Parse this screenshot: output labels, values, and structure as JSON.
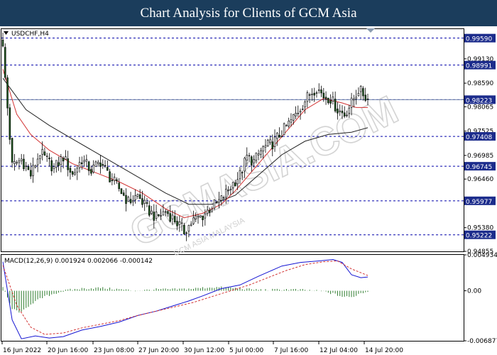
{
  "header": {
    "title": "Chart Analysis for Clients of GCM Asia"
  },
  "watermark": {
    "text": "GCMASIA.COM",
    "subtext": "GCM ASIA MALAYSIA",
    "color": "#d8d8d8"
  },
  "chart_data": [
    {
      "type": "candlestick",
      "symbol_label": "USDCHF,H4",
      "ylim": [
        0.94855,
        0.9979
      ],
      "y_ticks": [
        "0.99130",
        "0.98590",
        "0.98065",
        "0.97525",
        "0.96985",
        "0.96460",
        "0.95380",
        "0.94855"
      ],
      "x_labels": [
        "16 Jun 2022",
        "20 Jun 16:00",
        "23 Jun 08:00",
        "27 Jun 20:00",
        "30 Jun 12:00",
        "5 Jul 00:00",
        "7 Jul 16:00",
        "12 Jul 04:00",
        "14 Jul 20:00"
      ],
      "levels": [
        {
          "label": "0.99590",
          "value": 0.9959
        },
        {
          "label": "0.98991",
          "value": 0.98991
        },
        {
          "label": "0.98223",
          "value": 0.98223
        },
        {
          "label": "0.97408",
          "value": 0.97408
        },
        {
          "label": "0.96745",
          "value": 0.96745
        },
        {
          "label": "0.95977",
          "value": 0.95977
        },
        {
          "label": "0.95222",
          "value": 0.95222
        }
      ],
      "current_price": "0.98223",
      "price_path": [
        [
          0,
          0.9935
        ],
        [
          4,
          0.9675
        ],
        [
          8,
          0.969
        ],
        [
          12,
          0.9655
        ],
        [
          16,
          0.9705
        ],
        [
          22,
          0.967
        ],
        [
          26,
          0.9695
        ],
        [
          30,
          0.9655
        ],
        [
          34,
          0.969
        ],
        [
          38,
          0.9665
        ],
        [
          42,
          0.9685
        ],
        [
          46,
          0.965
        ],
        [
          50,
          0.9625
        ],
        [
          54,
          0.9595
        ],
        [
          58,
          0.961
        ],
        [
          62,
          0.958
        ],
        [
          66,
          0.956
        ],
        [
          70,
          0.9575
        ],
        [
          74,
          0.9555
        ],
        [
          78,
          0.953
        ],
        [
          82,
          0.9555
        ],
        [
          86,
          0.9565
        ],
        [
          90,
          0.9585
        ],
        [
          94,
          0.96
        ],
        [
          98,
          0.963
        ],
        [
          102,
          0.9655
        ],
        [
          105,
          0.9695
        ],
        [
          108,
          0.9685
        ],
        [
          112,
          0.9715
        ],
        [
          116,
          0.9725
        ],
        [
          120,
          0.975
        ],
        [
          124,
          0.9775
        ],
        [
          128,
          0.9805
        ],
        [
          132,
          0.9835
        ],
        [
          135,
          0.985
        ],
        [
          138,
          0.983
        ],
        [
          141,
          0.9825
        ],
        [
          144,
          0.98
        ],
        [
          147,
          0.979
        ],
        [
          150,
          0.9815
        ],
        [
          153,
          0.9845
        ],
        [
          155,
          0.9835
        ],
        [
          157,
          0.98223
        ]
      ],
      "ma_fast": [
        [
          0,
          0.989
        ],
        [
          6,
          0.979
        ],
        [
          12,
          0.9745
        ],
        [
          20,
          0.971
        ],
        [
          30,
          0.968
        ],
        [
          40,
          0.966
        ],
        [
          50,
          0.964
        ],
        [
          60,
          0.9615
        ],
        [
          70,
          0.958
        ],
        [
          78,
          0.956
        ],
        [
          86,
          0.957
        ],
        [
          94,
          0.959
        ],
        [
          100,
          0.962
        ],
        [
          110,
          0.968
        ],
        [
          120,
          0.974
        ],
        [
          130,
          0.98
        ],
        [
          138,
          0.9825
        ],
        [
          146,
          0.9815
        ],
        [
          152,
          0.9805
        ],
        [
          157,
          0.9805
        ]
      ],
      "ma_slow": [
        [
          0,
          0.987
        ],
        [
          10,
          0.98
        ],
        [
          20,
          0.9765
        ],
        [
          30,
          0.9735
        ],
        [
          40,
          0.9705
        ],
        [
          50,
          0.9675
        ],
        [
          60,
          0.9645
        ],
        [
          70,
          0.9615
        ],
        [
          80,
          0.959
        ],
        [
          90,
          0.959
        ],
        [
          100,
          0.961
        ],
        [
          110,
          0.9655
        ],
        [
          120,
          0.97
        ],
        [
          130,
          0.973
        ],
        [
          140,
          0.9745
        ],
        [
          150,
          0.975
        ],
        [
          157,
          0.976
        ]
      ],
      "n_bars": 158,
      "up_color": "#ffffff",
      "down_color": "#1e5a1e",
      "ma_fast_color": "#d23232",
      "ma_slow_color": "#222222",
      "level_color": "#0000aa"
    },
    {
      "type": "line",
      "indicator_label": "MACD(12,26,9) 0.001924 0.002066 -0.000142",
      "ylim": [
        -0.006877,
        0.004934
      ],
      "y_ticks": [
        "0.004934",
        "0.00",
        "-0.006877"
      ],
      "macd_line": [
        [
          0,
          0.004
        ],
        [
          4,
          -0.004
        ],
        [
          8,
          -0.0066
        ],
        [
          14,
          -0.0062
        ],
        [
          20,
          -0.0065
        ],
        [
          26,
          -0.0063
        ],
        [
          34,
          -0.0054
        ],
        [
          42,
          -0.0049
        ],
        [
          50,
          -0.0043
        ],
        [
          58,
          -0.0034
        ],
        [
          66,
          -0.0028
        ],
        [
          74,
          -0.002
        ],
        [
          80,
          -0.0014
        ],
        [
          86,
          -0.0007
        ],
        [
          94,
          0.0003
        ],
        [
          102,
          0.0008
        ],
        [
          110,
          0.002
        ],
        [
          120,
          0.0034
        ],
        [
          128,
          0.0039
        ],
        [
          136,
          0.0041
        ],
        [
          142,
          0.0043
        ],
        [
          146,
          0.0039
        ],
        [
          150,
          0.0022
        ],
        [
          154,
          0.0018
        ],
        [
          157,
          0.0019
        ]
      ],
      "signal_line": [
        [
          0,
          0.0035
        ],
        [
          6,
          -0.002
        ],
        [
          12,
          -0.005
        ],
        [
          18,
          -0.006
        ],
        [
          26,
          -0.0058
        ],
        [
          34,
          -0.0051
        ],
        [
          42,
          -0.0046
        ],
        [
          50,
          -0.0041
        ],
        [
          58,
          -0.0034
        ],
        [
          66,
          -0.0028
        ],
        [
          74,
          -0.0022
        ],
        [
          82,
          -0.0016
        ],
        [
          90,
          -0.0008
        ],
        [
          98,
          0.0
        ],
        [
          106,
          0.0008
        ],
        [
          114,
          0.0018
        ],
        [
          122,
          0.0028
        ],
        [
          130,
          0.0036
        ],
        [
          138,
          0.004
        ],
        [
          144,
          0.0041
        ],
        [
          150,
          0.003
        ],
        [
          157,
          0.0021
        ]
      ],
      "histogram": [
        [
          0,
          0.0005
        ],
        [
          4,
          -0.0025
        ],
        [
          8,
          -0.003
        ],
        [
          12,
          -0.0018
        ],
        [
          18,
          -0.0008
        ],
        [
          24,
          -0.0002
        ],
        [
          28,
          0.0001
        ],
        [
          34,
          0.0003
        ],
        [
          42,
          0.0004
        ],
        [
          50,
          0.0002
        ],
        [
          58,
          0.0
        ],
        [
          66,
          0.0002
        ],
        [
          74,
          0.0002
        ],
        [
          82,
          0.0003
        ],
        [
          90,
          0.0005
        ],
        [
          98,
          0.0004
        ],
        [
          106,
          0.0002
        ],
        [
          114,
          0.0001
        ],
        [
          122,
          0.0002
        ],
        [
          130,
          0.0001
        ],
        [
          138,
          -0.0001
        ],
        [
          142,
          -0.0004
        ],
        [
          146,
          -0.0008
        ],
        [
          150,
          -0.0009
        ],
        [
          154,
          -0.0003
        ],
        [
          157,
          -0.0001
        ]
      ],
      "macd_color": "#1414d2",
      "signal_color": "#d23232",
      "hist_color": "#2f7d2f"
    }
  ]
}
